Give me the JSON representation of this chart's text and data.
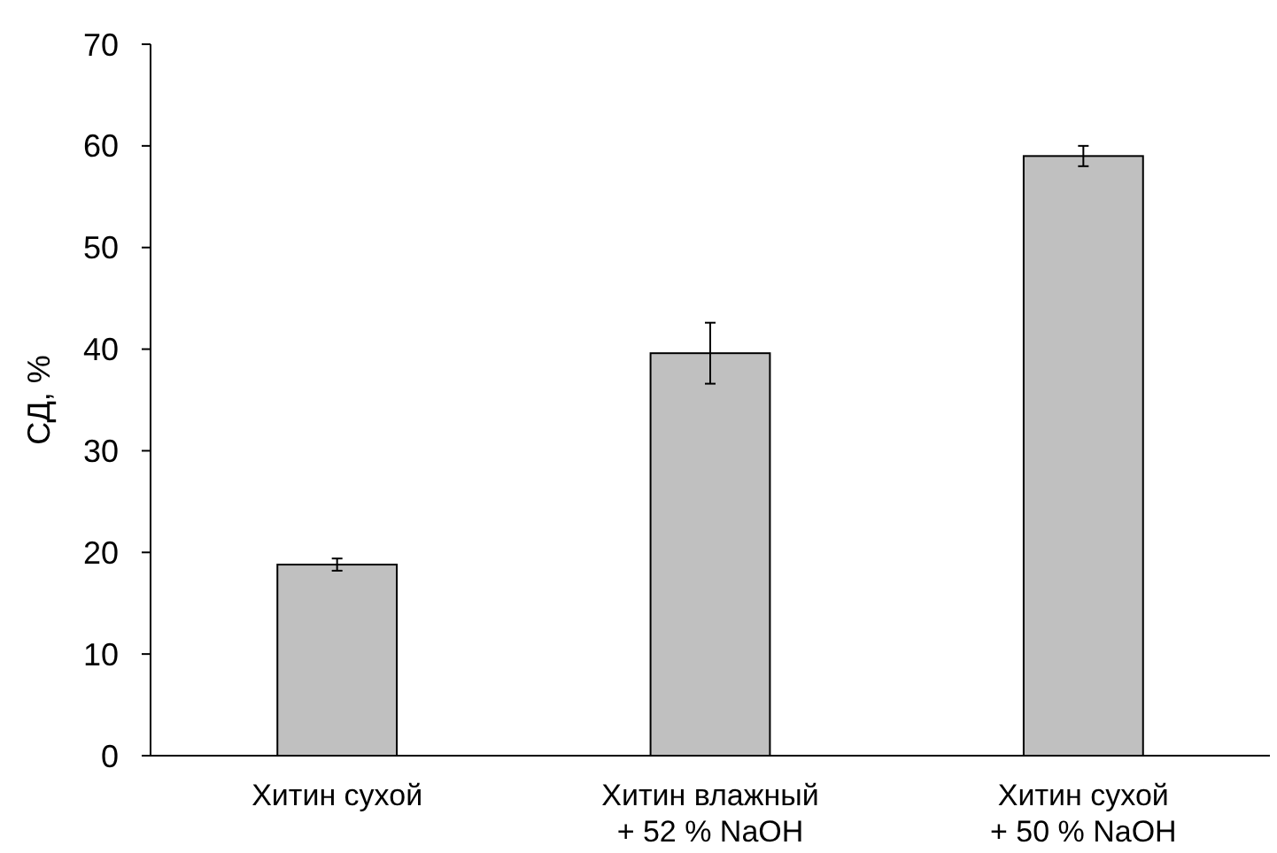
{
  "chart_data": {
    "type": "bar",
    "ylabel": "СД, %",
    "categories": [
      "Хитин сухой",
      "Хитин влажный\n+ 52 % NaOH",
      "Хитин сухой\n+ 50 % NaOH"
    ],
    "values": [
      18.8,
      39.6,
      59.0
    ],
    "errors": [
      0.6,
      3.0,
      1.0
    ],
    "color": "#c0c0c0",
    "ylim": [
      0,
      70
    ],
    "yticks": [
      0,
      10,
      20,
      30,
      40,
      50,
      60,
      70
    ],
    "grid": false
  }
}
